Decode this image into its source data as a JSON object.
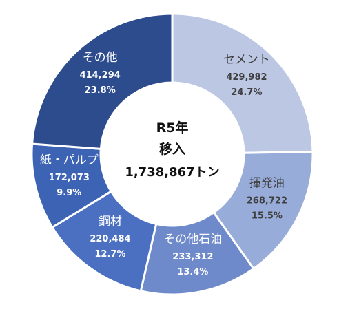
{
  "chart_data": {
    "type": "pie",
    "variant": "donut",
    "center_label": [
      "R5年",
      "移入",
      "1,738,867トン"
    ],
    "slices": [
      {
        "name": "セメント",
        "value": 429982,
        "value_text": "429,982",
        "percent_text": "24.7%",
        "color": "#BCC7E3",
        "text_color": "#3F3F3F"
      },
      {
        "name": "揮発油",
        "value": 268722,
        "value_text": "268,722",
        "percent_text": "15.5%",
        "color": "#98ACD9",
        "text_color": "#3F3F3F"
      },
      {
        "name": "その他石油",
        "value": 233312,
        "value_text": "233,312",
        "percent_text": "13.4%",
        "color": "#6E8ACB",
        "text_color": "#FFFFFF"
      },
      {
        "name": "鋼材",
        "value": 220484,
        "value_text": "220,484",
        "percent_text": "12.7%",
        "color": "#4B70C2",
        "text_color": "#FFFFFF"
      },
      {
        "name": "紙・パルプ",
        "value": 172073,
        "value_text": "172,073",
        "percent_text": "9.9%",
        "color": "#3D63B4",
        "text_color": "#FFFFFF"
      },
      {
        "name": "その他",
        "value": 414294,
        "value_text": "414,294",
        "percent_text": "23.8%",
        "color": "#2D4C8E",
        "text_color": "#FFFFFF"
      }
    ]
  }
}
